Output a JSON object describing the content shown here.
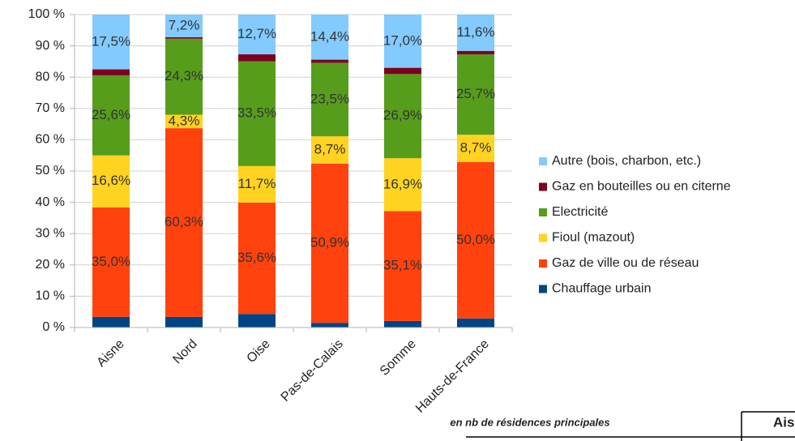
{
  "chart_data": {
    "type": "stacked_bar",
    "categories": [
      "Aisne",
      "Nord",
      "Oise",
      "Pas-de-Calais",
      "Somme",
      "Hauts-de-France"
    ],
    "series": [
      {
        "name": "Chauffage urbain",
        "color": "#004586",
        "values": [
          3.4,
          3.4,
          4.3,
          1.5,
          2.1,
          2.9
        ]
      },
      {
        "name": "Gaz de ville ou de réseau",
        "color": "#ff420e",
        "values": [
          35.0,
          60.3,
          35.6,
          50.9,
          35.1,
          50.0
        ],
        "value_labels": [
          "35,0%",
          "60,3%",
          "35,6%",
          "50,9%",
          "35,1%",
          "50,0%"
        ]
      },
      {
        "name": "Fioul (mazout)",
        "color": "#ffd320",
        "values": [
          16.6,
          4.3,
          11.7,
          8.7,
          16.9,
          8.7
        ],
        "value_labels": [
          "16,6%",
          "4,3%",
          "11,7%",
          "8,7%",
          "16,9%",
          "8,7%"
        ]
      },
      {
        "name": "Electricité",
        "color": "#579d1c",
        "values": [
          25.6,
          24.3,
          33.5,
          23.5,
          26.9,
          25.7
        ],
        "value_labels": [
          "25,6%",
          "24,3%",
          "33,5%",
          "23,5%",
          "26,9%",
          "25,7%"
        ]
      },
      {
        "name": "Gaz en bouteilles ou en citerne",
        "color": "#7e0021",
        "values": [
          1.9,
          0.5,
          2.2,
          1.0,
          2.0,
          1.1
        ]
      },
      {
        "name": "Autre (bois, charbon, etc.)",
        "color": "#83caff",
        "values": [
          17.5,
          7.2,
          12.7,
          14.4,
          17.0,
          11.6
        ],
        "value_labels": [
          "17,5%",
          "7,2%",
          "12,7%",
          "14,4%",
          "17,0%",
          "11,6%"
        ]
      }
    ],
    "ylim": [
      0,
      100
    ],
    "yticks": [
      {
        "value": 0,
        "label": "0 %"
      },
      {
        "value": 10,
        "label": "10 %"
      },
      {
        "value": 20,
        "label": "20 %"
      },
      {
        "value": 30,
        "label": "30 %"
      },
      {
        "value": 40,
        "label": "40 %"
      },
      {
        "value": 50,
        "label": "50 %"
      },
      {
        "value": 60,
        "label": "60 %"
      },
      {
        "value": 70,
        "label": "70 %"
      },
      {
        "value": 80,
        "label": "80 %"
      },
      {
        "value": 90,
        "label": "90 %"
      },
      {
        "value": 100,
        "label": "100 %"
      }
    ],
    "grid": true,
    "legend": "right"
  },
  "table": {
    "header": "en nb de résidences principales",
    "columns": [
      "Ais"
    ]
  }
}
